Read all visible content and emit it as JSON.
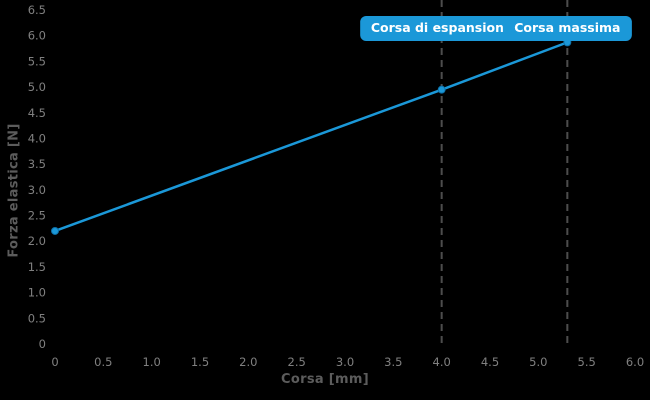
{
  "chart_data": {
    "type": "line",
    "title": "",
    "xlabel": "Corsa [mm]",
    "ylabel": "Forza elastica [N]",
    "xlim": [
      0,
      6.0
    ],
    "ylim": [
      0,
      6.5
    ],
    "grid": false,
    "legend": "none",
    "x_ticks": {
      "values": [
        0,
        0.5,
        1.0,
        1.5,
        2.0,
        2.5,
        3.0,
        3.5,
        4.0,
        4.5,
        5.0,
        5.5,
        6.0
      ],
      "labels": [
        "0",
        "0.5",
        "1.0",
        "1.5",
        "2.0",
        "2.5",
        "3.0",
        "3.5",
        "4.0",
        "4.5",
        "5.0",
        "5.5",
        "6.0"
      ]
    },
    "y_ticks": {
      "values": [
        0,
        0.5,
        1.0,
        1.5,
        2.0,
        2.5,
        3.0,
        3.5,
        4.0,
        4.5,
        5.0,
        5.5,
        6.0,
        6.5
      ],
      "labels": [
        "0",
        "0.5",
        "1.0",
        "1.5",
        "2.0",
        "2.5",
        "3.0",
        "3.5",
        "4.0",
        "4.5",
        "5.0",
        "5.5",
        "6.0",
        "6.5"
      ]
    },
    "series": [
      {
        "name": "forza-elastica-line",
        "points": [
          {
            "x": 0,
            "y": 2.2
          },
          {
            "x": 4.0,
            "y": 4.95
          },
          {
            "x": 5.3,
            "y": 5.87
          }
        ]
      }
    ],
    "annotations": [
      {
        "x": 4.0,
        "label": "Corsa di espansione"
      },
      {
        "x": 5.3,
        "label": "Corsa massima"
      }
    ],
    "colors": {
      "background": "#000000",
      "line": "#1b98d8",
      "marker": "#1b98d8",
      "marker_edge": "#0d6fa6",
      "annotation_bg": "#1b98d8",
      "annotation_text": "#ffffff",
      "dashed_line": "#4d4d4d",
      "tick_label": "#808080",
      "axis_title": "#5c5c5c"
    }
  }
}
